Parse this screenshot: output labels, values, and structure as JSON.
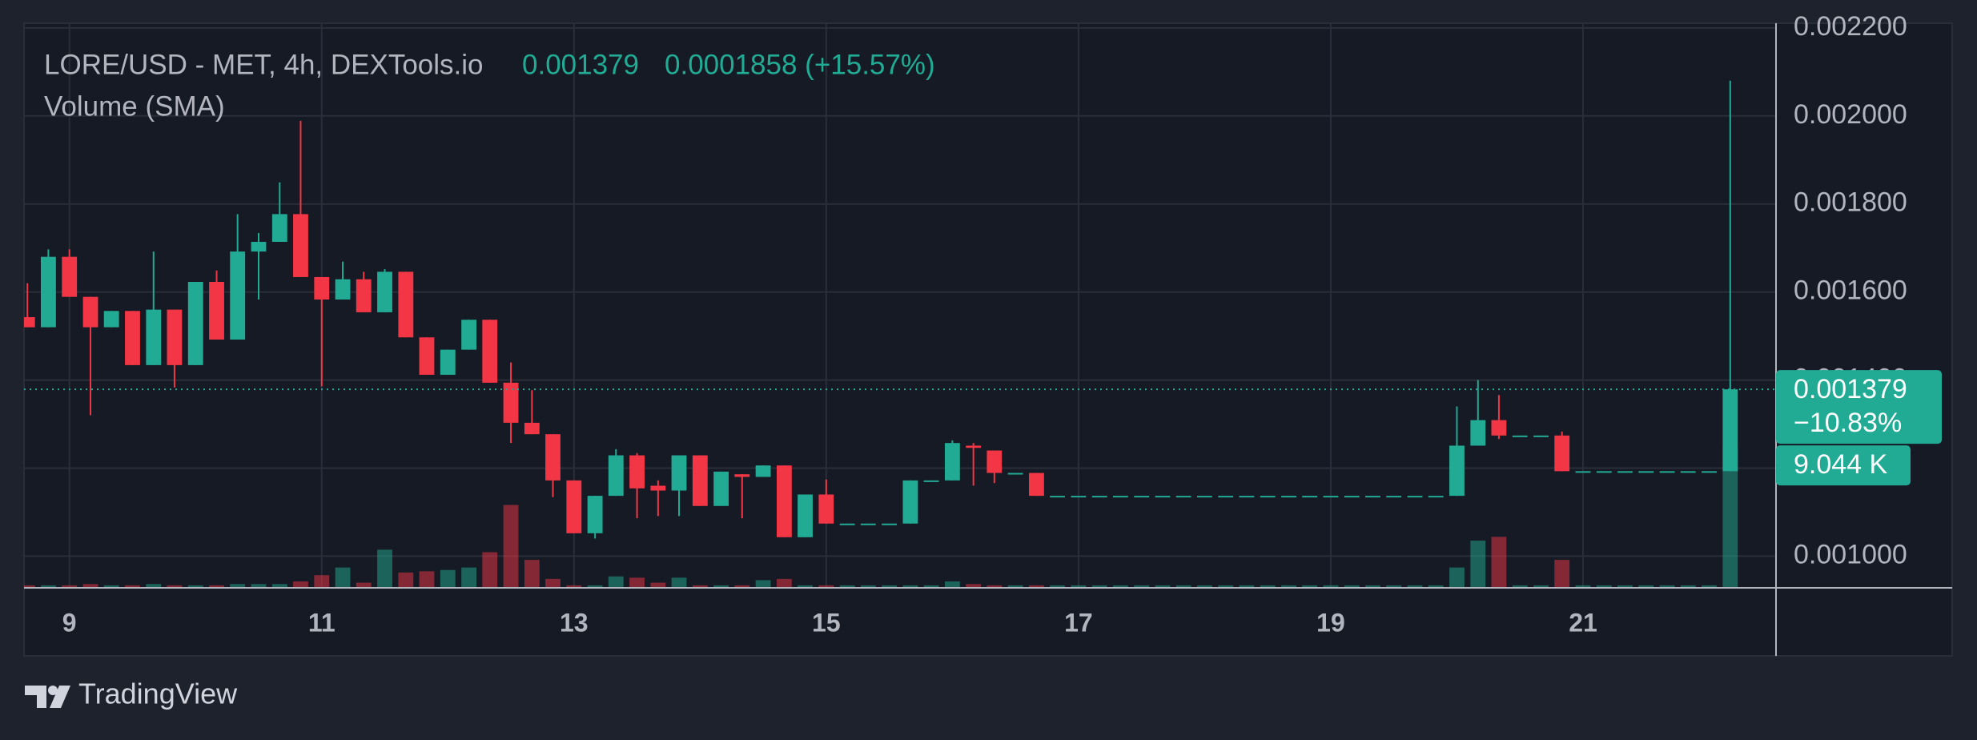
{
  "chart_data": {
    "type": "candlestick",
    "title": "LORE/USD - MET, 4h, DEXTools.io",
    "last_price": "0.001379",
    "change": "0.0001858 (+15.57%)",
    "volume_label": "Volume (SMA)",
    "price_tag": "0.001379",
    "change_tag": "−10.83%",
    "volume_tag": "9.044 K",
    "grid": true,
    "up_color": "#22ab94",
    "down_color": "#f23645",
    "xlim": [
      8.64,
      22.53
    ],
    "xticks": [
      9,
      11,
      13,
      15,
      17,
      19,
      21
    ],
    "ylim": [
      0.000928,
      0.002207
    ],
    "yticks": [
      {
        "value": 0.001,
        "label": "0.001000"
      },
      {
        "value": 0.0012,
        "label": "0.001200"
      },
      {
        "value": 0.0014,
        "label": "0.001400"
      },
      {
        "value": 0.0016,
        "label": "0.001600"
      },
      {
        "value": 0.0018,
        "label": "0.001800"
      },
      {
        "value": 0.002,
        "label": "0.002000"
      },
      {
        "value": 0.0022,
        "label": "0.002200"
      }
    ],
    "volume_ylim": [
      0,
      36
    ],
    "x": [
      8.667,
      8.833,
      9,
      9.167,
      9.333,
      9.5,
      9.667,
      9.833,
      10,
      10.167,
      10.333,
      10.5,
      10.667,
      10.833,
      11,
      11.167,
      11.333,
      11.5,
      11.667,
      11.833,
      12,
      12.167,
      12.333,
      12.5,
      12.667,
      12.833,
      13,
      13.167,
      13.333,
      13.5,
      13.667,
      13.833,
      14,
      14.167,
      14.333,
      14.5,
      14.667,
      14.833,
      15,
      15.167,
      15.333,
      15.5,
      15.667,
      15.833,
      16,
      16.167,
      16.333,
      16.5,
      16.667,
      16.833,
      17,
      17.167,
      17.333,
      17.5,
      17.667,
      17.833,
      18,
      18.167,
      18.333,
      18.5,
      18.667,
      18.833,
      19,
      19.167,
      19.333,
      19.5,
      19.667,
      19.833,
      20,
      20.167,
      20.333,
      20.5,
      20.667,
      20.833,
      21,
      21.167,
      21.333,
      21.5,
      21.667,
      21.833,
      22,
      22.167
    ],
    "open": [
      0.001543,
      0.00152,
      0.00168,
      0.001589,
      0.00152,
      0.001557,
      0.001434,
      0.00156,
      0.001434,
      0.001623,
      0.001492,
      0.001692,
      0.001714,
      0.001777,
      0.001634,
      0.001583,
      0.001629,
      0.001554,
      0.001646,
      0.001497,
      0.001412,
      0.001469,
      0.001537,
      0.001394,
      0.001303,
      0.001277,
      0.001172,
      0.001052,
      0.001137,
      0.001229,
      0.00116,
      0.001149,
      0.001229,
      0.001114,
      0.001186,
      0.00118,
      0.001206,
      0.001043,
      0.00114,
      0.001074,
      0.001074,
      0.001074,
      0.001074,
      0.001172,
      0.001172,
      0.001251,
      0.00124,
      0.001189,
      0.001189,
      0.001137,
      0.001137,
      0.001137,
      0.001137,
      0.001137,
      0.001137,
      0.001137,
      0.001137,
      0.001137,
      0.001137,
      0.001137,
      0.001137,
      0.001137,
      0.001137,
      0.001137,
      0.001137,
      0.001137,
      0.001137,
      0.001137,
      0.001137,
      0.001251,
      0.001309,
      0.001274,
      0.001274,
      0.001274,
      0.001193,
      0.001193,
      0.001193,
      0.001193,
      0.001193,
      0.001193,
      0.001193,
      0.001193
    ],
    "high": [
      0.00162,
      0.001697,
      0.001697,
      0.001589,
      0.001557,
      0.001557,
      0.001692,
      0.00156,
      0.001623,
      0.001649,
      0.001777,
      0.001734,
      0.001849,
      0.001989,
      0.001634,
      0.001669,
      0.001646,
      0.001652,
      0.001646,
      0.001497,
      0.001469,
      0.001537,
      0.001537,
      0.00144,
      0.001377,
      0.001277,
      0.001172,
      0.001137,
      0.001243,
      0.001234,
      0.001172,
      0.001229,
      0.001229,
      0.001192,
      0.001186,
      0.001206,
      0.001206,
      0.00114,
      0.001174,
      0.001074,
      0.001074,
      0.001074,
      0.001172,
      0.001172,
      0.001263,
      0.001257,
      0.00124,
      0.001189,
      0.001189,
      0.001137,
      0.001137,
      0.001137,
      0.001137,
      0.001137,
      0.001137,
      0.001137,
      0.001137,
      0.001137,
      0.001137,
      0.001137,
      0.001137,
      0.001137,
      0.001137,
      0.001137,
      0.001137,
      0.001137,
      0.001137,
      0.001137,
      0.00134,
      0.0014,
      0.001366,
      0.001274,
      0.001274,
      0.001283,
      0.001193,
      0.001193,
      0.001193,
      0.001193,
      0.001193,
      0.001193,
      0.001193,
      0.00208
    ],
    "low": [
      0.00152,
      0.00152,
      0.001589,
      0.00132,
      0.00152,
      0.001434,
      0.001434,
      0.001383,
      0.001434,
      0.001492,
      0.001492,
      0.001583,
      0.001714,
      0.001634,
      0.001386,
      0.001583,
      0.001554,
      0.001554,
      0.001497,
      0.001412,
      0.001412,
      0.001469,
      0.001394,
      0.001257,
      0.001277,
      0.001134,
      0.001052,
      0.00104,
      0.001137,
      0.001086,
      0.001091,
      0.001091,
      0.001114,
      0.001114,
      0.001086,
      0.00118,
      0.001043,
      0.001043,
      0.001074,
      0.001074,
      0.001074,
      0.001074,
      0.001074,
      0.001172,
      0.001172,
      0.00116,
      0.001166,
      0.001189,
      0.001137,
      0.001137,
      0.001137,
      0.001137,
      0.001137,
      0.001137,
      0.001137,
      0.001137,
      0.001137,
      0.001137,
      0.001137,
      0.001137,
      0.001137,
      0.001137,
      0.001137,
      0.001137,
      0.001137,
      0.001137,
      0.001137,
      0.001137,
      0.001137,
      0.001251,
      0.001266,
      0.001274,
      0.001274,
      0.001193,
      0.001193,
      0.001193,
      0.001193,
      0.001193,
      0.001193,
      0.001193,
      0.001193,
      0.001193
    ],
    "close": [
      0.00152,
      0.00168,
      0.001589,
      0.00152,
      0.001557,
      0.001434,
      0.00156,
      0.001434,
      0.001623,
      0.001492,
      0.001692,
      0.001714,
      0.001777,
      0.001634,
      0.001583,
      0.001629,
      0.001554,
      0.001646,
      0.001497,
      0.001412,
      0.001469,
      0.001537,
      0.001394,
      0.001303,
      0.001277,
      0.001172,
      0.001052,
      0.001137,
      0.001229,
      0.001154,
      0.001149,
      0.001229,
      0.001114,
      0.001192,
      0.00118,
      0.001206,
      0.001043,
      0.00114,
      0.001074,
      0.001074,
      0.001074,
      0.001074,
      0.001172,
      0.001172,
      0.001257,
      0.001246,
      0.001189,
      0.001189,
      0.001137,
      0.001137,
      0.001137,
      0.001137,
      0.001137,
      0.001137,
      0.001137,
      0.001137,
      0.001137,
      0.001137,
      0.001137,
      0.001137,
      0.001137,
      0.001137,
      0.001137,
      0.001137,
      0.001137,
      0.001137,
      0.001137,
      0.001137,
      0.001251,
      0.001309,
      0.001274,
      0.001274,
      0.001274,
      0.001193,
      0.001193,
      0.001193,
      0.001193,
      0.001193,
      0.001193,
      0.001193,
      0.001193,
      0.001379
    ],
    "volume": [
      0.16,
      0.16,
      0.16,
      0.24,
      0.16,
      0.16,
      0.24,
      0.16,
      0.16,
      0.16,
      0.24,
      0.24,
      0.24,
      0.41,
      0.81,
      1.3,
      0.33,
      2.44,
      0.98,
      1.06,
      1.14,
      1.3,
      2.28,
      5.3,
      1.79,
      0.57,
      0.16,
      0.16,
      0.73,
      0.65,
      0.33,
      0.65,
      0.16,
      0.16,
      0.16,
      0.49,
      0.57,
      0.16,
      0.16,
      0.16,
      0.16,
      0.16,
      0.16,
      0.16,
      0.41,
      0.24,
      0.16,
      0.16,
      0.16,
      0.16,
      0.16,
      0.16,
      0.16,
      0.16,
      0.16,
      0.16,
      0.16,
      0.16,
      0.16,
      0.16,
      0.16,
      0.16,
      0.16,
      0.16,
      0.16,
      0.16,
      0.16,
      0.16,
      1.3,
      3.02,
      3.26,
      0.16,
      0.16,
      1.79,
      0.16,
      0.16,
      0.16,
      0.16,
      0.16,
      0.16,
      0.16,
      9.044
    ]
  },
  "footer": {
    "brand": "TradingView"
  }
}
